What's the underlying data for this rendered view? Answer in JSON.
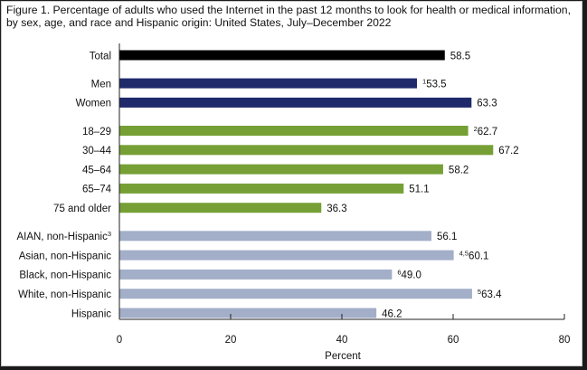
{
  "title": "Figure 1. Percentage of adults who used the Internet in the past 12 months to look for health or medical information, by sex, age, and race and Hispanic origin: United States, July–December 2022",
  "colors": {
    "total": "#000000",
    "sex": "#1f2a6b",
    "age": "#76a035",
    "race": "#a3aec9",
    "axis": "#222222",
    "text": "#111111"
  },
  "chart_data": {
    "type": "bar",
    "orientation": "horizontal",
    "xlabel": "Percent",
    "xlim": [
      0,
      80
    ],
    "xticks": [
      "0",
      "20",
      "40",
      "60",
      "80"
    ],
    "grid": false,
    "groups": [
      {
        "group": "total",
        "bars": [
          {
            "label": "Total",
            "value": 58.5,
            "sup": "",
            "label_sup": ""
          }
        ]
      },
      {
        "group": "sex",
        "bars": [
          {
            "label": "Men",
            "value": 53.5,
            "sup": "1",
            "label_sup": ""
          },
          {
            "label": "Women",
            "value": 63.3,
            "sup": "",
            "label_sup": ""
          }
        ]
      },
      {
        "group": "age",
        "bars": [
          {
            "label": "18–29",
            "value": 62.7,
            "sup": "2",
            "label_sup": ""
          },
          {
            "label": "30–44",
            "value": 67.2,
            "sup": "",
            "label_sup": ""
          },
          {
            "label": "45–64",
            "value": 58.2,
            "sup": "",
            "label_sup": ""
          },
          {
            "label": "65–74",
            "value": 51.1,
            "sup": "",
            "label_sup": ""
          },
          {
            "label": "75 and older",
            "value": 36.3,
            "sup": "",
            "label_sup": ""
          }
        ]
      },
      {
        "group": "race",
        "bars": [
          {
            "label": "AIAN, non-Hispanic",
            "value": 56.1,
            "sup": "",
            "label_sup": "3"
          },
          {
            "label": "Asian, non-Hispanic",
            "value": 60.1,
            "sup": "4,5",
            "label_sup": ""
          },
          {
            "label": "Black, non-Hispanic",
            "value": 49.0,
            "sup": "6",
            "label_sup": ""
          },
          {
            "label": "White, non-Hispanic",
            "value": 63.4,
            "sup": "5",
            "label_sup": ""
          },
          {
            "label": "Hispanic",
            "value": 46.2,
            "sup": "",
            "label_sup": ""
          }
        ]
      }
    ]
  }
}
